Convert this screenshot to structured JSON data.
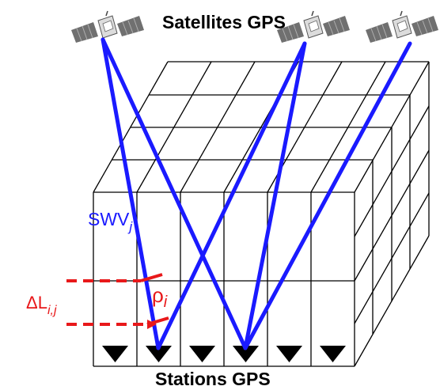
{
  "labels": {
    "satellites_title": "Satellites GPS",
    "stations_title": "Stations GPS",
    "swv_label": "SWV",
    "swv_subscript": "j",
    "rho_label": "ρ",
    "rho_subscript": "i",
    "delta_label": "ΔL",
    "delta_subscript": "i,j"
  },
  "colors": {
    "ray_lines": "#1a1aff",
    "path_segment": "#e8181a",
    "grid": "#000000",
    "station_markers": "#000000",
    "satellite_panels": "#6b6b6b"
  },
  "icons": {
    "satellite": "satellite-icon",
    "station": "station-triangle-icon"
  }
}
